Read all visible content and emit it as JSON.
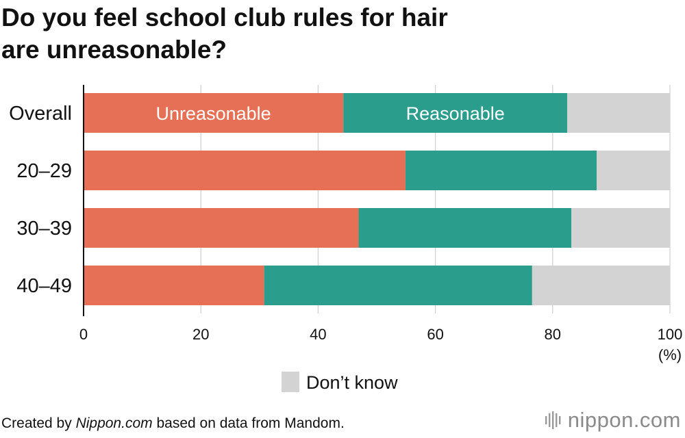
{
  "title_line1": "Do you feel school club rules for hair",
  "title_line2": "are unreasonable?",
  "chart_data": {
    "type": "bar",
    "orientation": "horizontal",
    "stacked": true,
    "categories": [
      "Overall",
      "20–29",
      "30–39",
      "40–49"
    ],
    "series": [
      {
        "name": "Unreasonable",
        "color": "#e57055",
        "values": [
          44.3,
          54.9,
          46.9,
          30.8
        ]
      },
      {
        "name": "Reasonable",
        "color": "#2b9d8c",
        "values": [
          38.2,
          32.6,
          36.3,
          45.7
        ]
      },
      {
        "name": "Don’t know",
        "color": "#d3d3d3",
        "values": [
          17.5,
          12.5,
          16.8,
          23.5
        ]
      }
    ],
    "xlim": [
      0,
      100
    ],
    "xticks": [
      "0",
      "20",
      "40",
      "60",
      "80",
      "100"
    ],
    "unit_label": "(%)",
    "grid": true,
    "inline_series_labels_on_row": "Overall",
    "legend": {
      "position": "bottom-center",
      "entries": [
        "Don’t know"
      ]
    }
  },
  "footer": {
    "prefix": "Created by ",
    "source_italic": "Nippon.com",
    "suffix": " based on data from Mandom."
  },
  "logo": {
    "text": "nippon.com",
    "icon": "nippon-logo-bars-icon"
  }
}
